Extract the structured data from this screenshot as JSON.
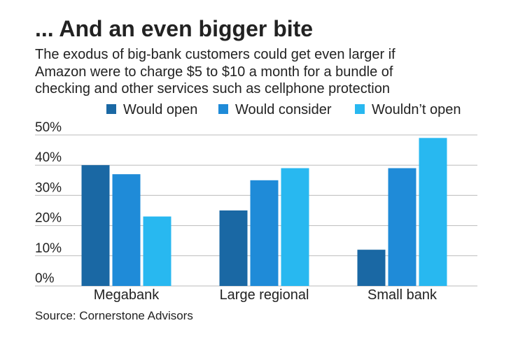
{
  "chart_data": {
    "type": "bar",
    "title": "... And an even bigger bite",
    "subtitle": [
      "The exodus of big-bank customers could get even larger if",
      "Amazon were to charge $5 to $10 a month for a bundle of",
      "checking and other services such as cellphone protection"
    ],
    "categories": [
      "Megabank",
      "Large regional",
      "Small bank"
    ],
    "series": [
      {
        "name": "Would open",
        "color": "#1a68a4",
        "values": [
          40,
          25,
          12
        ]
      },
      {
        "name": "Would consider",
        "color": "#1f8bd8",
        "values": [
          37,
          35,
          39
        ]
      },
      {
        "name": "Wouldn’t open",
        "color": "#28b8f0",
        "values": [
          23,
          39,
          49
        ]
      }
    ],
    "ylim": [
      0,
      50
    ],
    "yticks": [
      {
        "value": 0,
        "label": "0%"
      },
      {
        "value": 10,
        "label": "10%"
      },
      {
        "value": 20,
        "label": "20%"
      },
      {
        "value": 30,
        "label": "30%"
      },
      {
        "value": 40,
        "label": "40%"
      },
      {
        "value": 50,
        "label": "50%"
      }
    ],
    "grid": true,
    "source": "Source: Cornerstone Advisors"
  }
}
